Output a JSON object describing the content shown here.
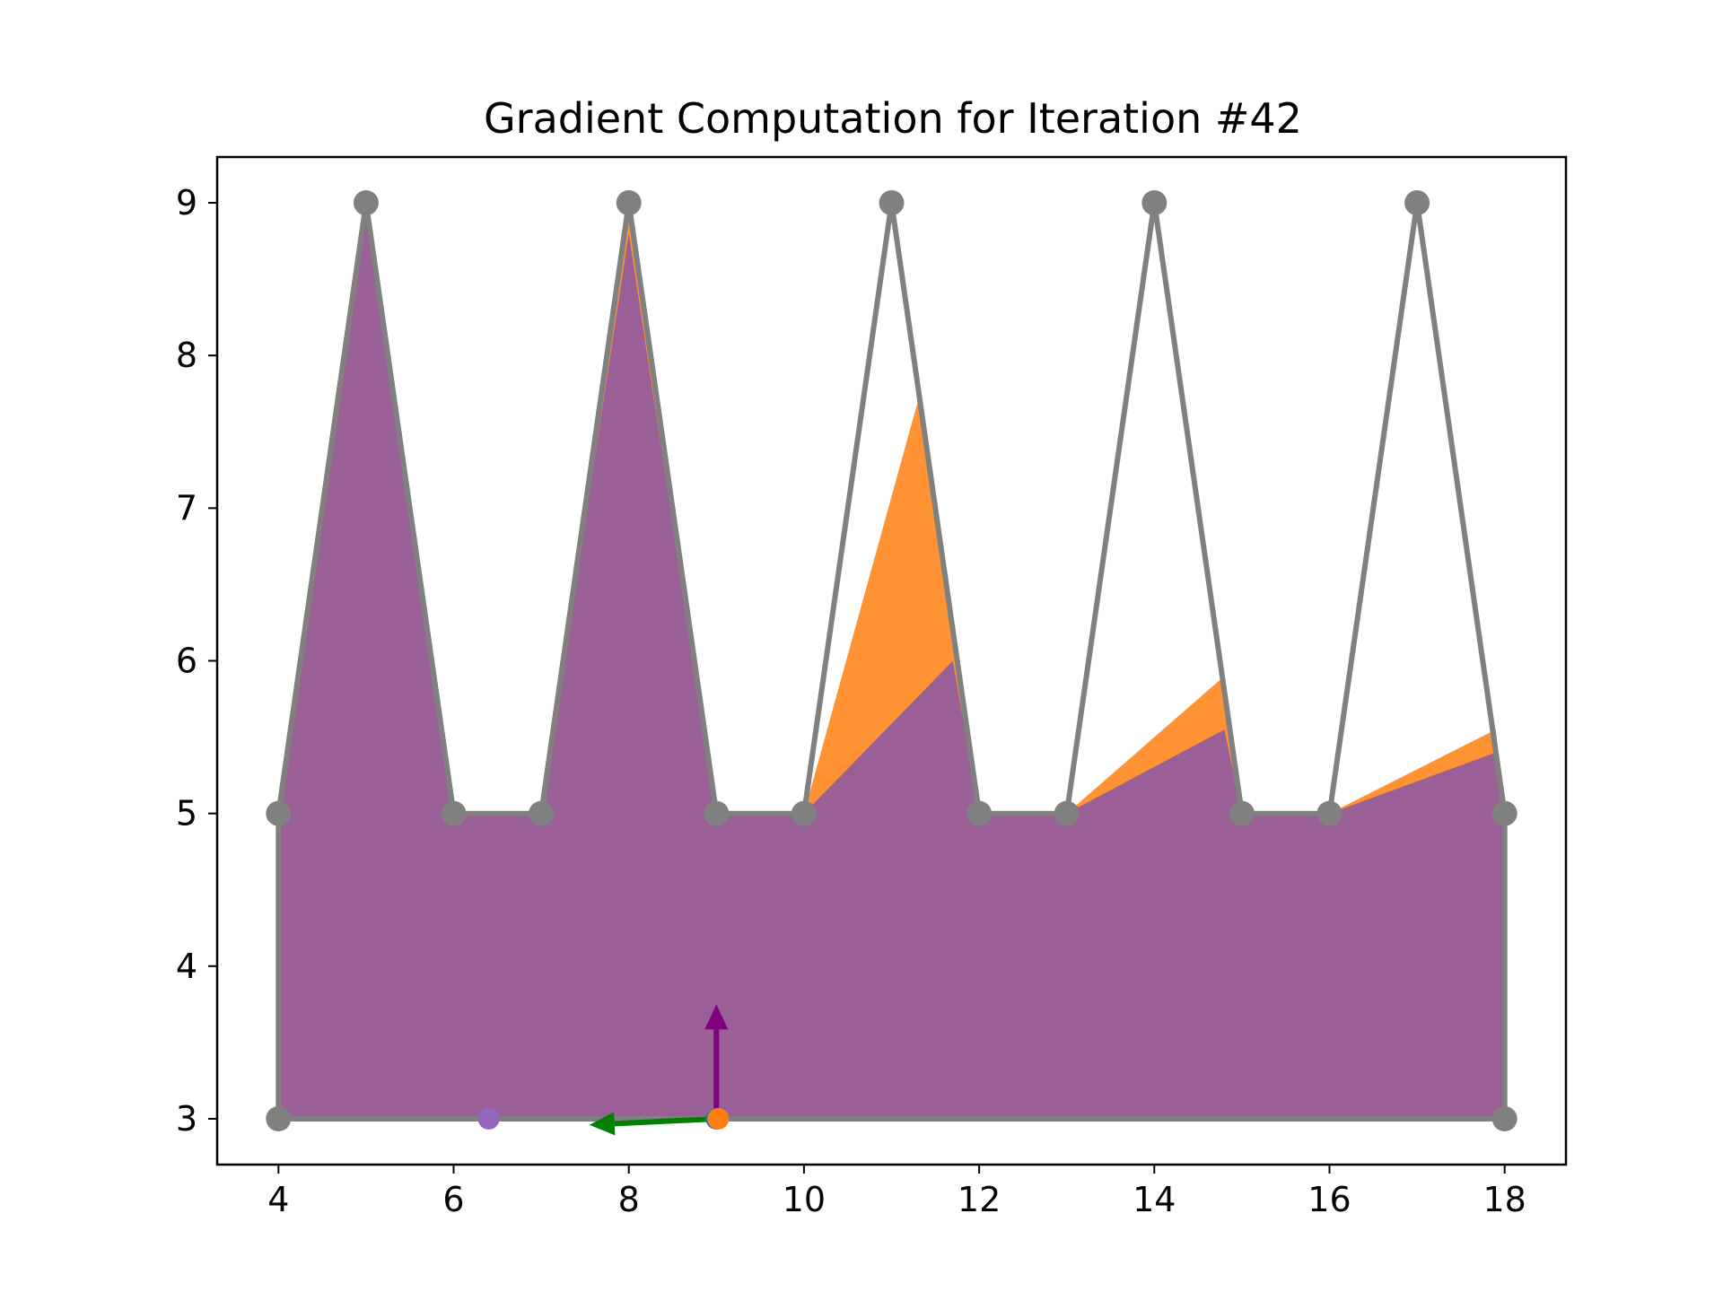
{
  "chart_data": {
    "type": "area",
    "title": "Gradient Computation for Iteration #42",
    "xlabel": "",
    "ylabel": "",
    "xlim": [
      3.3,
      18.7
    ],
    "ylim": [
      2.7,
      9.3
    ],
    "xticks": [
      4,
      6,
      8,
      10,
      12,
      14,
      16,
      18
    ],
    "yticks": [
      3,
      4,
      5,
      6,
      7,
      8,
      9
    ],
    "grid": false,
    "legend": "none",
    "colors": {
      "outline": "#808080",
      "orange_fill": "#ff7f0e",
      "purple_fill": "#9b5f97",
      "red_fill": "#d62728",
      "green_arrow": "#008000",
      "purple_arrow": "#800080",
      "marker_blue": "#1f77b4",
      "marker_orange": "#ff7f0e",
      "marker_purple": "#9467bd",
      "marker_red": "#d62728"
    },
    "outline_polygon": {
      "x": [
        4,
        5,
        6,
        7,
        8,
        9,
        10,
        11,
        12,
        13,
        14,
        15,
        16,
        17,
        18,
        18,
        4,
        4
      ],
      "y": [
        5,
        9,
        5,
        5,
        9,
        5,
        5,
        9,
        5,
        5,
        9,
        5,
        5,
        9,
        5,
        3,
        3,
        5
      ]
    },
    "orange_polygon": {
      "x": [
        4,
        5,
        6,
        7,
        8,
        9,
        10,
        11.3,
        12,
        13,
        14.8,
        15,
        16,
        17.9,
        18,
        18,
        4,
        4
      ],
      "y": [
        5,
        9,
        5,
        5,
        9,
        5,
        5,
        7.7,
        5,
        5,
        5.9,
        5,
        5,
        5.55,
        5,
        3,
        3,
        5
      ]
    },
    "purple_polygon": {
      "x": [
        4,
        5,
        6,
        7,
        8,
        9,
        10,
        11.7,
        12,
        13,
        14.8,
        15,
        16,
        17.9,
        18,
        18,
        4,
        4
      ],
      "y": [
        5,
        9,
        5,
        5,
        8.8,
        5,
        5,
        6.0,
        5,
        5,
        5.55,
        5,
        5,
        5.4,
        5,
        3,
        3,
        5
      ]
    },
    "arrows": [
      {
        "name": "gradient-x",
        "x": 9,
        "y": 3,
        "dx": -1.45,
        "dy": -0.04,
        "color": "green"
      },
      {
        "name": "gradient-y",
        "x": 9,
        "y": 3,
        "dx": 0,
        "dy": 0.75,
        "color": "purple"
      }
    ],
    "markers": [
      {
        "x": 9,
        "y": 3,
        "color": "blue"
      },
      {
        "x": 9.02,
        "y": 3,
        "color": "orange"
      },
      {
        "x": 6.4,
        "y": 3,
        "color": "purple"
      }
    ]
  }
}
